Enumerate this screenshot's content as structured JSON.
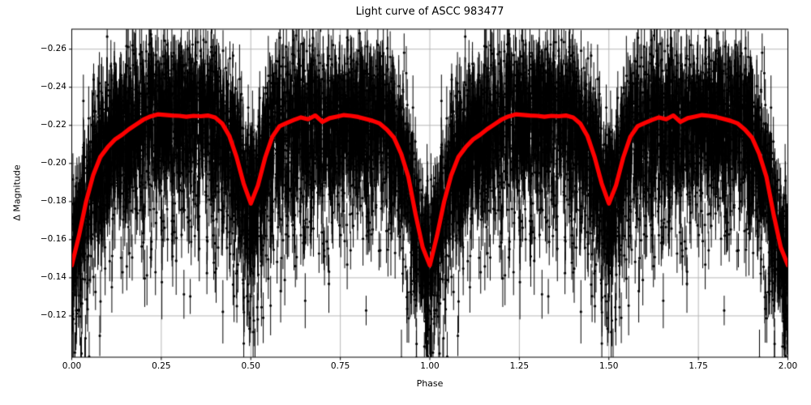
{
  "figure": {
    "title": "Light curve of ASCC 983477",
    "xlabel": "Phase",
    "ylabel": "Δ Magnitude"
  },
  "chart_data": {
    "type": "scatter",
    "title": "Light curve of ASCC 983477",
    "xlabel": "Phase",
    "ylabel": "Δ Magnitude",
    "xlim": [
      0,
      2
    ],
    "ylim_top_to_bottom": [
      -0.2705,
      -0.0983
    ],
    "y_axis_inverted": true,
    "grid": true,
    "grid_color": "#b0b0b0",
    "x_ticks": {
      "values": [
        0.0,
        0.25,
        0.5,
        0.75,
        1.0,
        1.25,
        1.5,
        1.75,
        2.0
      ],
      "labels": [
        "0.00",
        "0.25",
        "0.50",
        "0.75",
        "1.00",
        "1.25",
        "1.50",
        "1.75",
        "2.00"
      ]
    },
    "y_ticks": {
      "values": [
        -0.26,
        -0.24,
        -0.22,
        -0.2,
        -0.18,
        -0.16,
        -0.14,
        -0.12
      ],
      "labels": [
        "−0.26",
        "−0.24",
        "−0.22",
        "−0.20",
        "−0.18",
        "−0.16",
        "−0.14",
        "−0.12"
      ]
    },
    "series": [
      {
        "name": "photometric-observations",
        "type": "errorbar-scatter",
        "color": "#000000",
        "duplicated_over_phase": [
          0,
          2
        ],
        "estimated_distribution": {
          "n_points_per_cycle": 4200,
          "noise_sigma_mag": 0.017,
          "faint_outlier_fraction": 0.28,
          "faint_outlier_amp_mag": 0.07,
          "bright_outlier_fraction": 0.1,
          "bright_outlier_amp_mag": 0.025,
          "errorbar_halflength_mag": [
            0.006,
            0.022
          ],
          "seed": 7
        }
      },
      {
        "name": "smoothed-light-curve",
        "type": "line",
        "color": "#ff0000",
        "duplicated_over_phase": [
          0,
          2
        ],
        "phase": [
          0.0,
          0.02,
          0.04,
          0.06,
          0.08,
          0.1,
          0.12,
          0.14,
          0.16,
          0.18,
          0.2,
          0.22,
          0.24,
          0.26,
          0.28,
          0.3,
          0.32,
          0.34,
          0.36,
          0.38,
          0.4,
          0.42,
          0.44,
          0.46,
          0.48,
          0.5,
          0.52,
          0.54,
          0.56,
          0.58,
          0.6,
          0.62,
          0.64,
          0.66,
          0.68,
          0.7,
          0.72,
          0.74,
          0.76,
          0.78,
          0.8,
          0.82,
          0.84,
          0.86,
          0.88,
          0.9,
          0.92,
          0.94,
          0.96,
          0.98,
          1.0
        ],
        "mag": [
          -0.1465,
          -0.162,
          -0.18,
          -0.194,
          -0.2035,
          -0.2085,
          -0.2125,
          -0.215,
          -0.218,
          -0.2205,
          -0.223,
          -0.2247,
          -0.2258,
          -0.2255,
          -0.2252,
          -0.225,
          -0.2245,
          -0.225,
          -0.2248,
          -0.2252,
          -0.2242,
          -0.221,
          -0.2145,
          -0.2035,
          -0.1895,
          -0.179,
          -0.1885,
          -0.203,
          -0.214,
          -0.2195,
          -0.2212,
          -0.2228,
          -0.2242,
          -0.2232,
          -0.2252,
          -0.2218,
          -0.2238,
          -0.2246,
          -0.2254,
          -0.225,
          -0.2244,
          -0.2234,
          -0.2224,
          -0.221,
          -0.2178,
          -0.2135,
          -0.205,
          -0.193,
          -0.1735,
          -0.156,
          -0.1465
        ],
        "primary_minimum": {
          "phase": 1.0,
          "mag": -0.1465
        },
        "secondary_minimum": {
          "phase": 0.5,
          "mag": -0.179
        },
        "maximum_plateau_mag": -0.2255
      }
    ]
  }
}
